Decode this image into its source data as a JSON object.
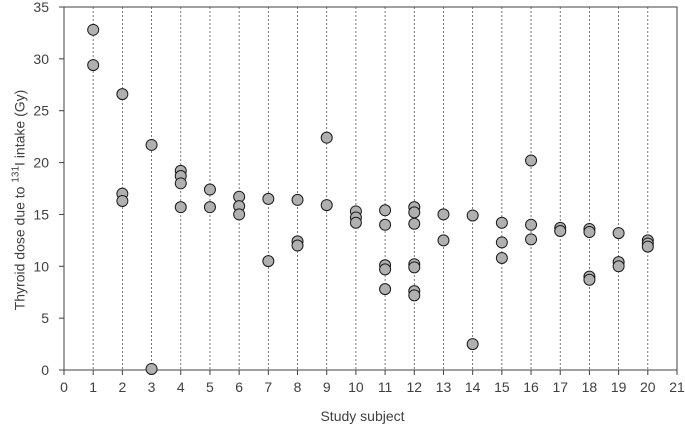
{
  "chart_data": {
    "type": "scatter",
    "xlabel": "Study subject",
    "ylabel": {
      "prefix": "Thyroid dose due to ",
      "superscript": "131",
      "suffix": "I intake (Gy)"
    },
    "xlim": [
      0,
      21
    ],
    "ylim": [
      0,
      35
    ],
    "x_ticks": [
      0,
      1,
      2,
      3,
      4,
      5,
      6,
      7,
      8,
      9,
      10,
      11,
      12,
      13,
      14,
      15,
      16,
      17,
      18,
      19,
      20,
      21
    ],
    "y_ticks": [
      0,
      5,
      10,
      15,
      20,
      25,
      30,
      35
    ],
    "grid": "vertical dashed lines at integer x",
    "marker_color": "#b0b0b0",
    "marker_edge_color": "#1a1a1a",
    "points": [
      {
        "x": 1,
        "y": 32.8
      },
      {
        "x": 1,
        "y": 29.4
      },
      {
        "x": 2,
        "y": 26.6
      },
      {
        "x": 2,
        "y": 17.0
      },
      {
        "x": 2,
        "y": 16.3
      },
      {
        "x": 3,
        "y": 21.7
      },
      {
        "x": 3,
        "y": 0.1
      },
      {
        "x": 4,
        "y": 19.2
      },
      {
        "x": 4,
        "y": 18.7
      },
      {
        "x": 4,
        "y": 18.0
      },
      {
        "x": 4,
        "y": 15.7
      },
      {
        "x": 5,
        "y": 17.4
      },
      {
        "x": 5,
        "y": 15.7
      },
      {
        "x": 6,
        "y": 16.7
      },
      {
        "x": 6,
        "y": 15.8
      },
      {
        "x": 6,
        "y": 15.0
      },
      {
        "x": 7,
        "y": 16.5
      },
      {
        "x": 7,
        "y": 10.5
      },
      {
        "x": 8,
        "y": 16.4
      },
      {
        "x": 8,
        "y": 12.4
      },
      {
        "x": 8,
        "y": 12.0
      },
      {
        "x": 9,
        "y": 22.4
      },
      {
        "x": 9,
        "y": 15.9
      },
      {
        "x": 10,
        "y": 15.3
      },
      {
        "x": 10,
        "y": 14.7
      },
      {
        "x": 10,
        "y": 14.2
      },
      {
        "x": 11,
        "y": 15.4
      },
      {
        "x": 11,
        "y": 14.0
      },
      {
        "x": 11,
        "y": 10.1
      },
      {
        "x": 11,
        "y": 9.7
      },
      {
        "x": 11,
        "y": 7.8
      },
      {
        "x": 12,
        "y": 15.7
      },
      {
        "x": 12,
        "y": 15.2
      },
      {
        "x": 12,
        "y": 14.1
      },
      {
        "x": 12,
        "y": 10.2
      },
      {
        "x": 12,
        "y": 9.9
      },
      {
        "x": 12,
        "y": 7.6
      },
      {
        "x": 12,
        "y": 7.2
      },
      {
        "x": 13,
        "y": 15.0
      },
      {
        "x": 13,
        "y": 12.5
      },
      {
        "x": 14,
        "y": 14.9
      },
      {
        "x": 14,
        "y": 2.5
      },
      {
        "x": 15,
        "y": 14.2
      },
      {
        "x": 15,
        "y": 12.3
      },
      {
        "x": 15,
        "y": 10.8
      },
      {
        "x": 16,
        "y": 20.2
      },
      {
        "x": 16,
        "y": 14.0
      },
      {
        "x": 16,
        "y": 12.6
      },
      {
        "x": 17,
        "y": 13.7
      },
      {
        "x": 17,
        "y": 13.4
      },
      {
        "x": 18,
        "y": 13.6
      },
      {
        "x": 18,
        "y": 13.3
      },
      {
        "x": 18,
        "y": 9.0
      },
      {
        "x": 18,
        "y": 8.7
      },
      {
        "x": 19,
        "y": 13.2
      },
      {
        "x": 19,
        "y": 10.4
      },
      {
        "x": 19,
        "y": 10.0
      },
      {
        "x": 20,
        "y": 12.5
      },
      {
        "x": 20,
        "y": 12.2
      },
      {
        "x": 20,
        "y": 11.9
      }
    ]
  }
}
